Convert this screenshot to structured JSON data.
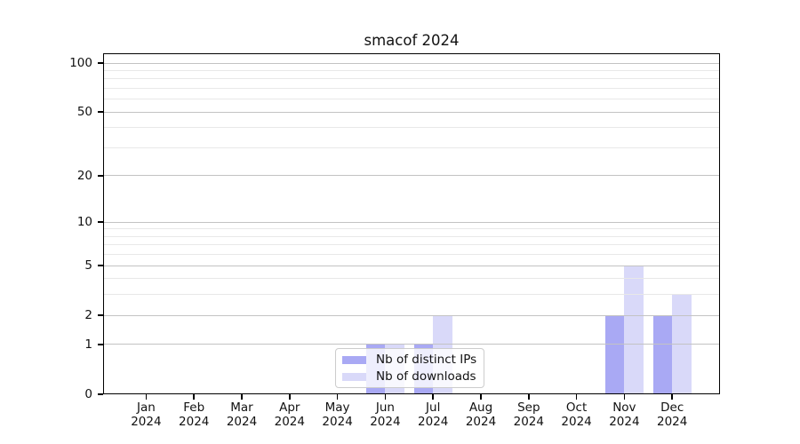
{
  "chart_data": {
    "type": "bar",
    "title": "smacof 2024",
    "categories": [
      "Jan 2024",
      "Feb 2024",
      "Mar 2024",
      "Apr 2024",
      "May 2024",
      "Jun 2024",
      "Jul 2024",
      "Aug 2024",
      "Sep 2024",
      "Oct 2024",
      "Nov 2024",
      "Dec 2024"
    ],
    "series": [
      {
        "name": "Nb of distinct IPs",
        "color": "#a9a9f4",
        "values": [
          0,
          0,
          0,
          0,
          0,
          1,
          1,
          0,
          0,
          0,
          2,
          2
        ]
      },
      {
        "name": "Nb of downloads",
        "color": "#d9d9f9",
        "values": [
          0,
          0,
          0,
          0,
          0,
          1,
          2,
          0,
          0,
          0,
          5,
          3
        ]
      }
    ],
    "yscale": "log1p",
    "ylim": [
      0,
      100
    ],
    "y_major_ticks": [
      0,
      1,
      2,
      5,
      10,
      20,
      50,
      100
    ],
    "y_minor_ticks": [
      3,
      4,
      6,
      7,
      8,
      9,
      30,
      40,
      60,
      70,
      80,
      90
    ],
    "grid": "horizontal",
    "legend_position": "inside-lower-center"
  }
}
